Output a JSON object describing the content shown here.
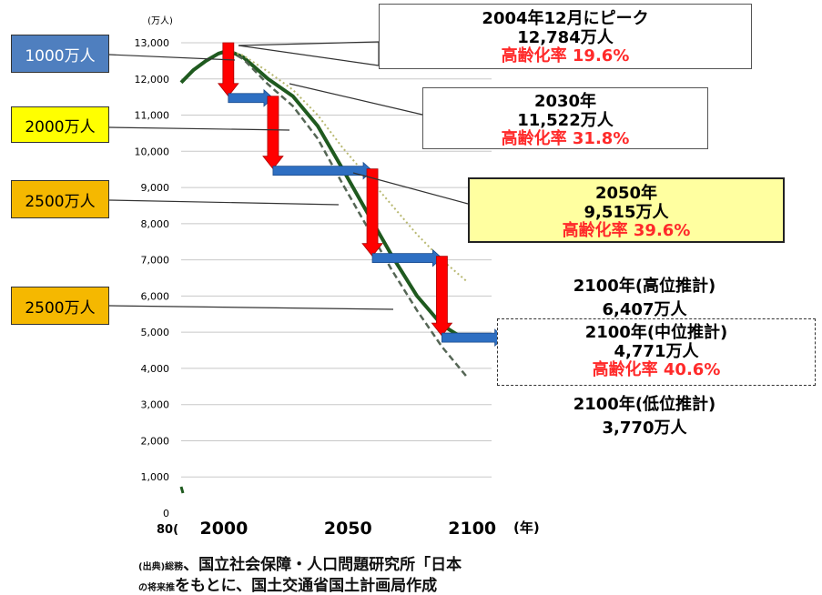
{
  "chart_data": {
    "type": "line",
    "y_unit": "(万人)",
    "x_unit": "(年)",
    "x_ticks": [
      "2000",
      "2050",
      "2100"
    ],
    "x_left_label": "80(",
    "xlim": [
      1985,
      2110
    ],
    "ylim": [
      0,
      13000
    ],
    "y_ticks": [
      "0",
      "1,000",
      "2,000",
      "3,000",
      "4,000",
      "5,000",
      "6,000",
      "7,000",
      "8,000",
      "9,000",
      "10,000",
      "11,000",
      "12,000",
      "13,000"
    ],
    "grid": true,
    "series": [
      {
        "color": "#1f5a1f",
        "style": "solid",
        "x": [
          1985,
          1990,
          1995,
          2000,
          2004,
          2010,
          2020,
          2030,
          2040,
          2050,
          2060,
          2070,
          2080,
          2090,
          2100
        ],
        "y": [
          11900,
          12250,
          12500,
          12700,
          12784,
          12600,
          12000,
          11522,
          10700,
          9515,
          8300,
          7100,
          6000,
          5200,
          4771
        ]
      },
      {
        "color": "#b8b870",
        "style": "dotted",
        "x": [
          2004,
          2010,
          2020,
          2030,
          2040,
          2050,
          2060,
          2070,
          2080,
          2090,
          2100
        ],
        "y": [
          12784,
          12650,
          12200,
          11700,
          11000,
          10100,
          9300,
          8500,
          7700,
          7000,
          6407
        ]
      },
      {
        "color": "#556655",
        "style": "dashed",
        "x": [
          2004,
          2010,
          2020,
          2030,
          2040,
          2050,
          2060,
          2070,
          2080,
          2090,
          2100
        ],
        "y": [
          12784,
          12550,
          11850,
          11250,
          10350,
          9100,
          7900,
          6700,
          5600,
          4600,
          3770
        ]
      }
    ],
    "staircase": {
      "points": [
        {
          "year": 2004,
          "value": 13000
        },
        {
          "year": 2022,
          "value": 11522
        },
        {
          "year": 2062,
          "value": 9515
        },
        {
          "year": 2090,
          "value": 7100
        },
        {
          "year": 2115,
          "value": 4900
        }
      ]
    }
  },
  "callouts": {
    "peak": {
      "line1": "2004年12月にピーク",
      "line2": "12,784万人",
      "line3": "高齢化率 19.6%"
    },
    "y2030": {
      "line1": "2030年",
      "line2": "11,522万人",
      "line3": "高齢化率 31.8%"
    },
    "y2050": {
      "line1": "2050年",
      "line2": "9,515万人",
      "line3": "高齢化率 39.6%"
    },
    "high": {
      "line1": "2100年(高位推計)",
      "line2": "6,407万人"
    },
    "mid": {
      "line1": "2100年(中位推計)",
      "line2": "4,771万人",
      "line3": "高齢化率 40.6%"
    },
    "low": {
      "line1": "2100年(低位推計)",
      "line2": "3,770万人"
    }
  },
  "tags": [
    {
      "text": "1000万人",
      "bg": "#4f7fbf",
      "fg": "#ffffff"
    },
    {
      "text": "2000万人",
      "bg": "#ffff00",
      "fg": "#000000"
    },
    {
      "text": "2500万人",
      "bg": "#f5b800",
      "fg": "#000000"
    },
    {
      "text": "2500万人",
      "bg": "#f5b800",
      "fg": "#000000"
    }
  ],
  "source": {
    "line1_prefix": "(出典)総務",
    "line1_main": "、国立社会保障・人口問題研究所「日本",
    "line2_prefix": "の将来推",
    "line2_main": "をもとに、国土交通省国土計画局作成"
  },
  "colors": {
    "arrow_red": "#ff0000",
    "arrow_blue": "#2e6fc2",
    "grid": "#c8c8c8"
  }
}
